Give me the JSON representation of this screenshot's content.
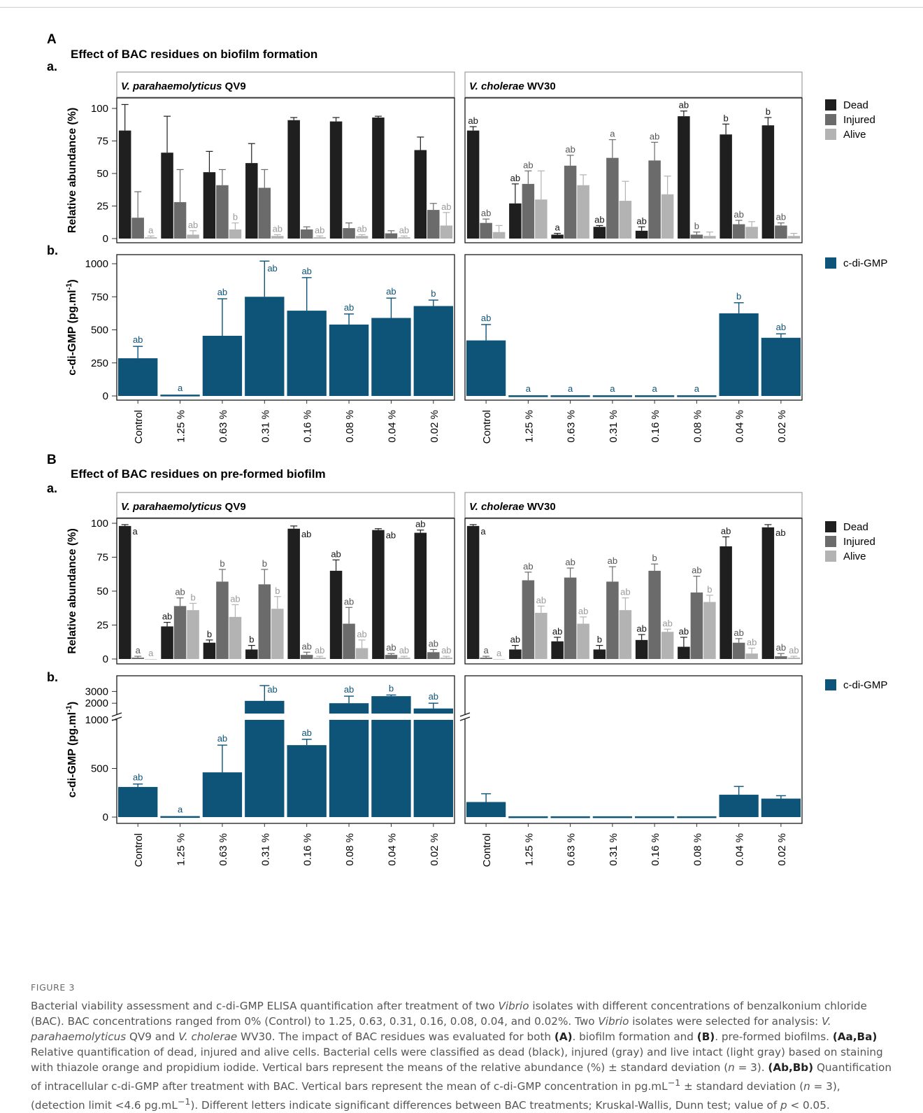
{
  "colors": {
    "dead": "#1f1f1f",
    "injured": "#6b6b6b",
    "alive": "#b3b3b3",
    "cdigmp": "#0d5478",
    "letter_dead": "#111111",
    "letter_injured": "#555555",
    "letter_alive": "#9a9a9a"
  },
  "categories": [
    "Control",
    "1.25 %",
    "0.63 %",
    "0.31 %",
    "0.16 %",
    "0.08 %",
    "0.04 %",
    "0.02 %"
  ],
  "panels": {
    "A": {
      "letter": "A",
      "title": "Effect of BAC residues on biofilm formation",
      "sub_a": "a.",
      "sub_b": "b."
    },
    "B": {
      "letter": "B",
      "title": "Effect of BAC residues on pre-formed biofilm",
      "sub_a": "a.",
      "sub_b": "b."
    }
  },
  "strips": [
    {
      "italic": "V. parahaemolyticus",
      "rest": " QV9"
    },
    {
      "italic": "V. cholerae",
      "rest": " WV30"
    }
  ],
  "ylabels": {
    "abundance": "Relative abundance (%)",
    "cdigmp": "c-di-GMP (pg.ml",
    "cdigmp_sup": "-1",
    "cdigmp_close": ")"
  },
  "legend": {
    "dead": "Dead",
    "injured": "Injured",
    "alive": "Alive",
    "cdigmp": "c-di-GMP"
  },
  "chart_data": [
    {
      "type": "bar",
      "id": "Aa",
      "title": "Effect of BAC residues on biofilm formation",
      "ylabel": "Relative abundance (%)",
      "ylim": [
        0,
        100
      ],
      "yticks": [
        0,
        25,
        50,
        75,
        100
      ],
      "facets": [
        {
          "strain": "V. parahaemolyticus QV9",
          "series": [
            {
              "name": "Dead",
              "values": [
                83,
                66,
                51,
                58,
                91,
                90,
                93,
                68
              ],
              "err": [
                20,
                28,
                16,
                15,
                2,
                3,
                1,
                10
              ],
              "letters": [
                "",
                "",
                "",
                "",
                "",
                "",
                "",
                ""
              ]
            },
            {
              "name": "Injured",
              "values": [
                16,
                28,
                41,
                39,
                7,
                8,
                4,
                22
              ],
              "err": [
                20,
                25,
                12,
                14,
                2,
                4,
                2,
                5
              ],
              "letters": [
                "",
                "",
                "",
                "",
                "",
                "",
                "",
                ""
              ]
            },
            {
              "name": "Alive",
              "values": [
                1,
                3,
                7,
                2,
                1,
                2,
                1,
                10
              ],
              "err": [
                1,
                3,
                5,
                1,
                1,
                1,
                1,
                10
              ],
              "letters": [
                "a",
                "ab",
                "b",
                "ab",
                "ab",
                "ab",
                "ab",
                "ab"
              ]
            }
          ]
        },
        {
          "strain": "V. cholerae WV30",
          "series": [
            {
              "name": "Dead",
              "values": [
                83,
                27,
                3,
                9,
                6,
                94,
                80,
                87
              ],
              "err": [
                3,
                15,
                1,
                1,
                3,
                4,
                8,
                6
              ],
              "letters": [
                "ab",
                "ab",
                "a",
                "ab",
                "ab",
                "ab",
                "b",
                "b"
              ]
            },
            {
              "name": "Injured",
              "values": [
                12,
                42,
                56,
                62,
                60,
                3,
                11,
                10
              ],
              "err": [
                3,
                10,
                8,
                14,
                14,
                2,
                3,
                2
              ],
              "letters": [
                "ab",
                "ab",
                "ab",
                "a",
                "ab",
                "b",
                "ab",
                "ab"
              ]
            },
            {
              "name": "Alive",
              "values": [
                5,
                30,
                41,
                29,
                34,
                2,
                9,
                2
              ],
              "err": [
                5,
                22,
                8,
                15,
                14,
                3,
                4,
                2
              ],
              "letters": [
                "",
                "",
                "",
                "",
                "",
                "",
                "",
                ""
              ]
            }
          ]
        }
      ]
    },
    {
      "type": "bar",
      "id": "Ab",
      "ylabel": "c-di-GMP (pg.ml-1)",
      "ylim": [
        0,
        1050
      ],
      "yticks": [
        0,
        250,
        500,
        750,
        1000
      ],
      "facets": [
        {
          "strain": "V. parahaemolyticus QV9",
          "series": [
            {
              "name": "c-di-GMP",
              "values": [
                285,
                10,
                455,
                750,
                645,
                540,
                590,
                680
              ],
              "err": [
                90,
                0,
                280,
                270,
                250,
                80,
                150,
                45
              ],
              "letters": [
                "ab",
                "a",
                "ab",
                "ab",
                "ab",
                "ab",
                "ab",
                "b"
              ]
            }
          ]
        },
        {
          "strain": "V. cholerae WV30",
          "series": [
            {
              "name": "c-di-GMP",
              "values": [
                420,
                5,
                5,
                5,
                5,
                5,
                625,
                440
              ],
              "err": [
                120,
                0,
                0,
                0,
                0,
                0,
                80,
                30
              ],
              "letters": [
                "ab",
                "a",
                "a",
                "a",
                "a",
                "a",
                "b",
                "ab"
              ]
            }
          ]
        }
      ]
    },
    {
      "type": "bar",
      "id": "Ba",
      "title": "Effect of BAC residues on pre-formed biofilm",
      "ylabel": "Relative abundance (%)",
      "ylim": [
        0,
        100
      ],
      "yticks": [
        0,
        25,
        50,
        75,
        100
      ],
      "facets": [
        {
          "strain": "V. parahaemolyticus QV9",
          "series": [
            {
              "name": "Dead",
              "values": [
                98,
                24,
                12,
                7,
                96,
                65,
                95,
                93
              ],
              "err": [
                1,
                3,
                2,
                3,
                2,
                8,
                1,
                2
              ],
              "letters": [
                "a",
                "ab",
                "b",
                "b",
                "ab",
                "ab",
                "ab",
                "ab"
              ]
            },
            {
              "name": "Injured",
              "values": [
                1,
                39,
                57,
                55,
                3,
                26,
                3,
                5
              ],
              "err": [
                1,
                6,
                9,
                11,
                2,
                12,
                1,
                2
              ],
              "letters": [
                "a",
                "ab",
                "b",
                "b",
                "ab",
                "ab",
                "ab",
                "ab"
              ]
            },
            {
              "name": "Alive",
              "values": [
                0,
                36,
                31,
                37,
                1,
                8,
                1,
                1
              ],
              "err": [
                0,
                5,
                9,
                9,
                1,
                6,
                1,
                1
              ],
              "letters": [
                "a",
                "b",
                "ab",
                "b",
                "ab",
                "ab",
                "ab",
                "ab"
              ]
            }
          ]
        },
        {
          "strain": "V. cholerae WV30",
          "series": [
            {
              "name": "Dead",
              "values": [
                98,
                7,
                13,
                7,
                14,
                9,
                83,
                97
              ],
              "err": [
                1,
                3,
                3,
                3,
                4,
                7,
                7,
                2
              ],
              "letters": [
                "a",
                "ab",
                "ab",
                "b",
                "ab",
                "ab",
                "ab",
                "ab"
              ]
            },
            {
              "name": "Injured",
              "values": [
                1,
                58,
                60,
                57,
                65,
                49,
                12,
                2
              ],
              "err": [
                1,
                6,
                7,
                11,
                5,
                12,
                3,
                2
              ],
              "letters": [
                "a",
                "ab",
                "ab",
                "ab",
                "b",
                "ab",
                "ab",
                "ab"
              ]
            },
            {
              "name": "Alive",
              "values": [
                0,
                34,
                26,
                36,
                20,
                42,
                4,
                1
              ],
              "err": [
                0,
                5,
                5,
                9,
                2,
                5,
                4,
                1
              ],
              "letters": [
                "a",
                "ab",
                "ab",
                "ab",
                "ab",
                "b",
                "ab",
                "ab"
              ]
            }
          ]
        }
      ]
    },
    {
      "type": "bar",
      "id": "Bb",
      "ylabel": "c-di-GMP (pg.ml-1)",
      "axis_break": true,
      "lower_ylim": [
        0,
        1000
      ],
      "lower_yticks": [
        0,
        500,
        1000
      ],
      "upper_ylim": [
        1000,
        3800
      ],
      "upper_yticks": [
        1000,
        2000,
        3000
      ],
      "facets": [
        {
          "strain": "V. parahaemolyticus QV9",
          "series": [
            {
              "name": "c-di-GMP",
              "values": [
                310,
                10,
                460,
                2200,
                740,
                2000,
                2600,
                1550
              ],
              "err": [
                30,
                0,
                280,
                1300,
                60,
                600,
                100,
                450
              ],
              "letters": [
                "ab",
                "a",
                "ab",
                "ab",
                "ab",
                "ab",
                "b",
                "ab"
              ]
            }
          ]
        },
        {
          "strain": "V. cholerae WV30",
          "series": [
            {
              "name": "c-di-GMP",
              "values": [
                155,
                8,
                8,
                8,
                8,
                8,
                230,
                190
              ],
              "err": [
                85,
                0,
                0,
                0,
                0,
                0,
                85,
                30
              ],
              "letters": [
                "",
                "",
                "",
                "",
                "",
                "",
                "",
                ""
              ]
            }
          ]
        }
      ]
    }
  ],
  "caption": {
    "label": "FIGURE 3",
    "text": "Bacterial viability assessment and c-di-GMP ELISA quantification after treatment of two Vibrio isolates with different concentrations of benzalkonium chloride (BAC). BAC concentrations ranged from 0% (Control) to 1.25, 0.63, 0.31, 0.16, 0.08, 0.04, and 0.02%. Two Vibrio isolates were selected for analysis: V. parahaemolyticus QV9 and V. cholerae WV30. The impact of BAC residues was evaluated for both (A). biofilm formation and (B). pre-formed biofilms. (Aa,Ba) Relative quantification of dead, injured and alive cells. Bacterial cells were classified as dead (black), injured (gray) and live intact (light gray) based on staining with thiazole orange and propidium iodide. Vertical bars represent the means of the relative abundance (%) ± standard deviation (n = 3). (Ab,Bb) Quantification of intracellular c-di-GMP after treatment with BAC. Vertical bars represent the mean of c-di-GMP concentration in pg.mL−1 ± standard deviation (n = 3), (detection limit <4.6 pg.mL−1). Different letters indicate significant differences between BAC treatments; Kruskal-Wallis, Dunn test; value of p < 0.05."
  }
}
